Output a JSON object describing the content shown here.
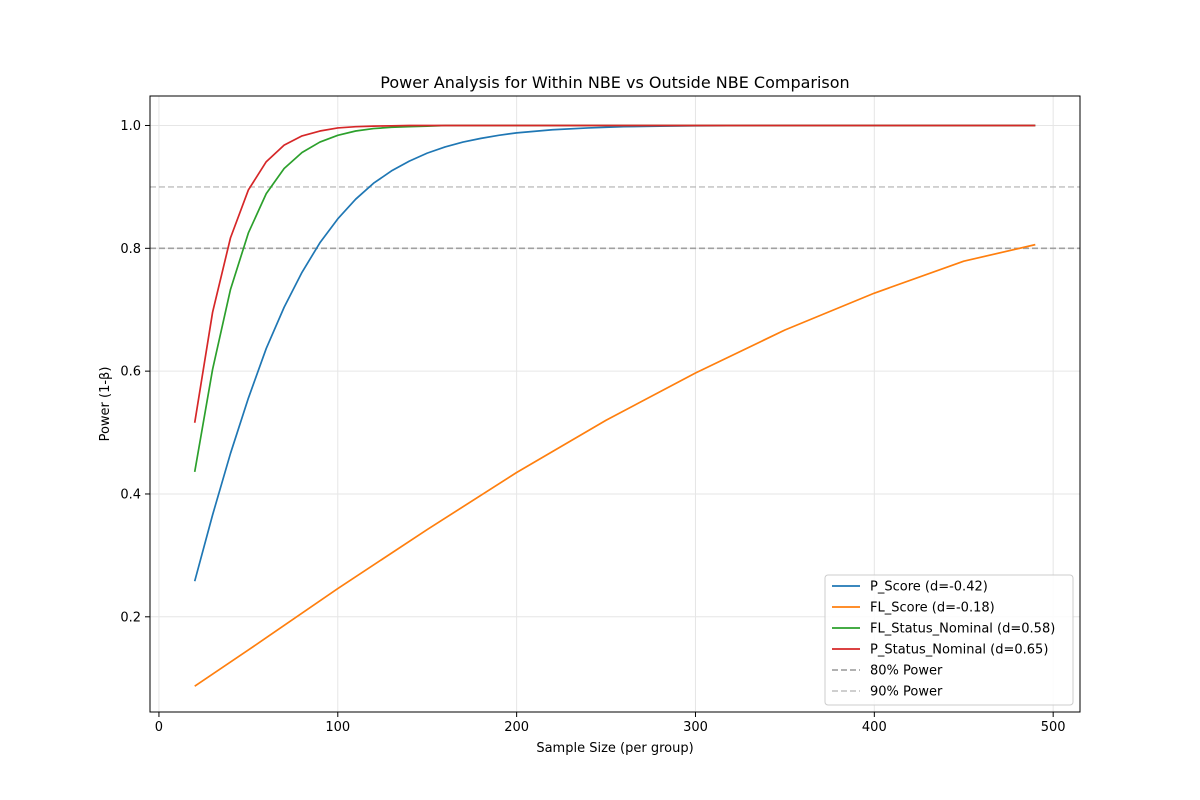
{
  "chart_data": {
    "type": "line",
    "title": "Power Analysis for Within NBE vs Outside NBE Comparison",
    "xlabel": "Sample Size (per group)",
    "ylabel": "Power (1-β)",
    "xlim": [
      -5,
      515
    ],
    "ylim": [
      0.045,
      1.048
    ],
    "xticks": [
      0,
      100,
      200,
      300,
      400,
      500
    ],
    "yticks": [
      0.2,
      0.4,
      0.6,
      0.8,
      1.0
    ],
    "xtick_labels": [
      "0",
      "100",
      "200",
      "300",
      "400",
      "500"
    ],
    "ytick_labels": [
      "0.2",
      "0.4",
      "0.6",
      "0.8",
      "1.0"
    ],
    "grid": true,
    "legend_position": "lower-right",
    "series": [
      {
        "name": "P_Score (d=-0.42)",
        "color": "#1f77b4",
        "x": [
          20,
          30,
          40,
          50,
          60,
          70,
          80,
          90,
          100,
          110,
          120,
          130,
          140,
          150,
          160,
          170,
          180,
          190,
          200,
          220,
          240,
          260,
          280,
          300,
          350,
          400,
          450,
          490
        ],
        "y": [
          0.258,
          0.366,
          0.466,
          0.556,
          0.637,
          0.704,
          0.761,
          0.809,
          0.848,
          0.88,
          0.906,
          0.926,
          0.942,
          0.955,
          0.965,
          0.973,
          0.979,
          0.984,
          0.988,
          0.993,
          0.996,
          0.998,
          0.999,
          0.9995,
          1.0,
          1.0,
          1.0,
          1.0
        ]
      },
      {
        "name": "FL_Score (d=-0.18)",
        "color": "#ff7f0e",
        "x": [
          20,
          50,
          100,
          150,
          200,
          250,
          300,
          350,
          400,
          450,
          490
        ],
        "y": [
          0.087,
          0.146,
          0.246,
          0.342,
          0.435,
          0.52,
          0.597,
          0.667,
          0.727,
          0.779,
          0.806
        ]
      },
      {
        "name": "FL_Status_Nominal (d=0.58)",
        "color": "#2ca02c",
        "x": [
          20,
          30,
          40,
          50,
          60,
          70,
          80,
          90,
          100,
          110,
          120,
          130,
          140,
          150,
          160,
          180,
          200,
          250,
          300,
          400,
          490
        ],
        "y": [
          0.436,
          0.603,
          0.733,
          0.825,
          0.889,
          0.93,
          0.956,
          0.973,
          0.984,
          0.991,
          0.995,
          0.997,
          0.998,
          0.999,
          1.0,
          1.0,
          1.0,
          1.0,
          1.0,
          1.0,
          1.0
        ]
      },
      {
        "name": "P_Status_Nominal (d=0.65)",
        "color": "#d62728",
        "x": [
          20,
          30,
          40,
          50,
          60,
          70,
          80,
          90,
          100,
          110,
          120,
          130,
          140,
          160,
          200,
          300,
          400,
          490
        ],
        "y": [
          0.516,
          0.696,
          0.817,
          0.895,
          0.941,
          0.968,
          0.983,
          0.991,
          0.996,
          0.998,
          0.999,
          0.9995,
          1.0,
          1.0,
          1.0,
          1.0,
          1.0,
          1.0
        ]
      }
    ],
    "reference_lines": [
      {
        "name": "80% Power",
        "y": 0.8,
        "color": "#808080",
        "opacity": 0.7,
        "style": "dashed"
      },
      {
        "name": "90% Power",
        "y": 0.9,
        "color": "#b0b0b0",
        "opacity": 0.7,
        "style": "dashed"
      }
    ]
  }
}
